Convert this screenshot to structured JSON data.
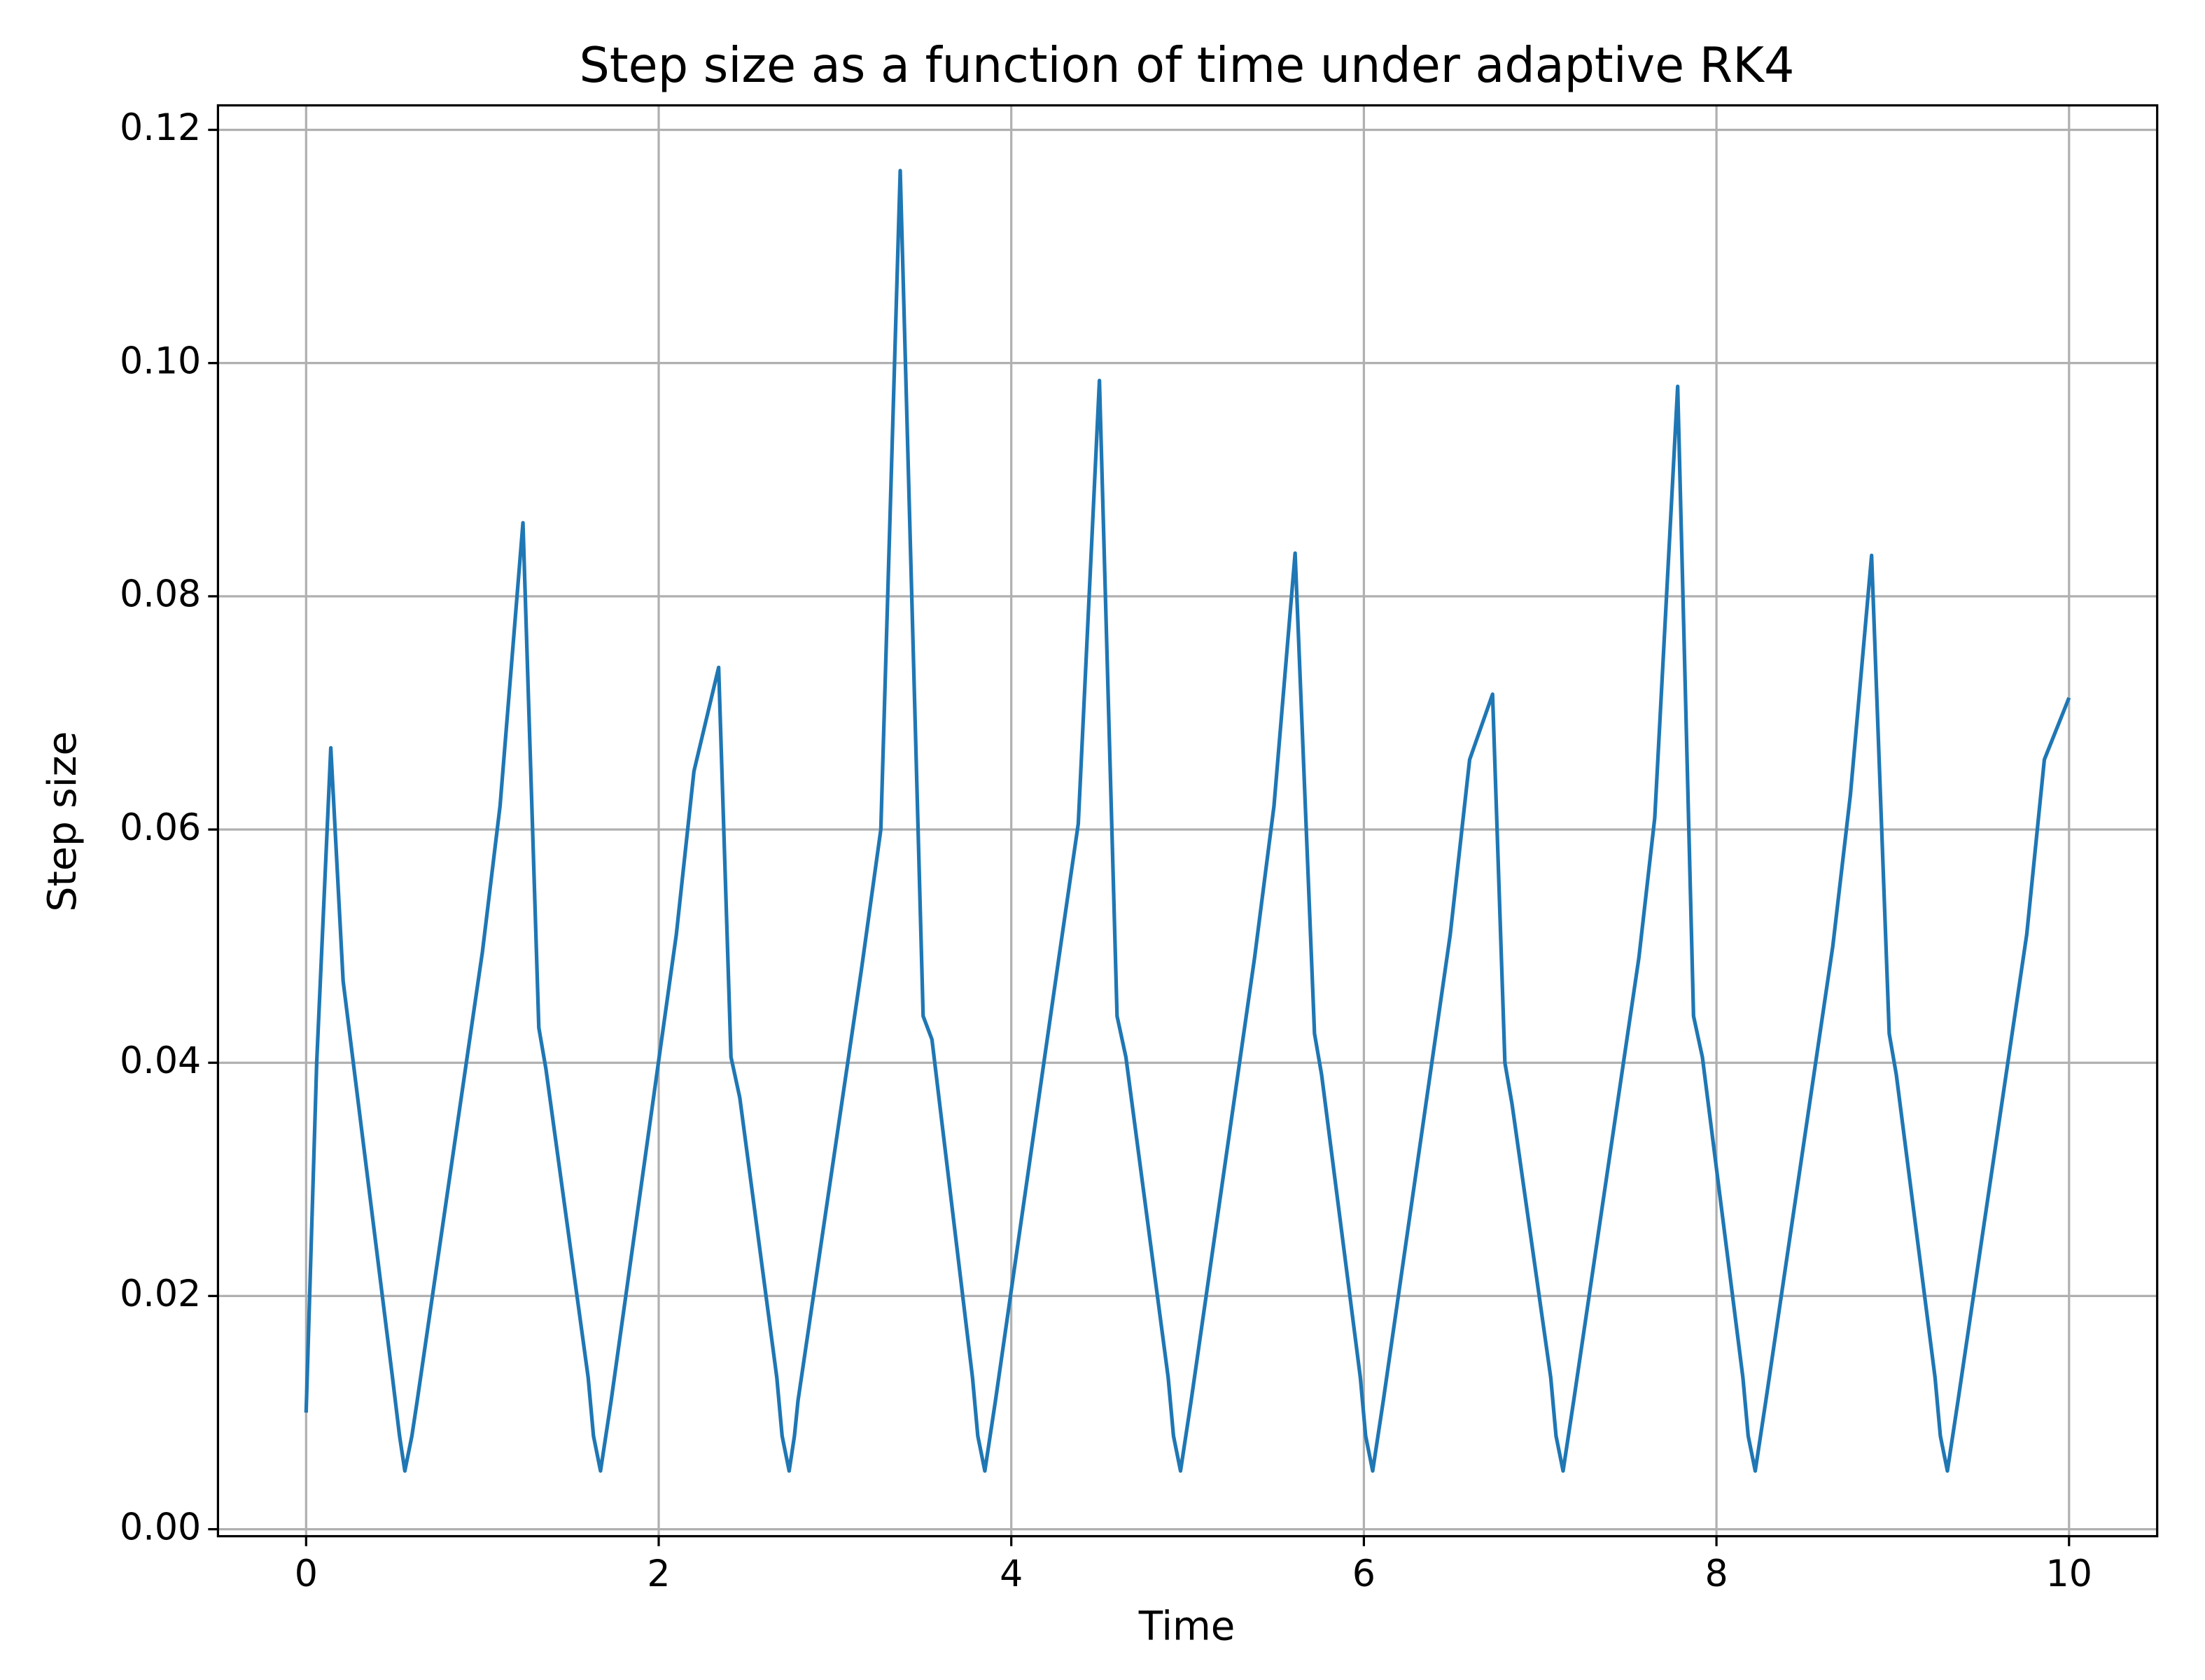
{
  "chart_data": {
    "type": "line",
    "title": "Step size as a function of time under adaptive RK4",
    "x_label": "Time",
    "y_label": "Step size",
    "x": [
      0,
      0.06,
      0.14,
      0.21,
      0.49,
      0.53,
      0.56,
      0.6,
      0.63,
      1.0,
      1.1,
      1.23,
      1.32,
      1.36,
      1.6,
      1.63,
      1.67,
      1.7,
      1.73,
      2.1,
      2.2,
      2.34,
      2.41,
      2.46,
      2.67,
      2.7,
      2.74,
      2.77,
      2.79,
      3.15,
      3.26,
      3.37,
      3.5,
      3.55,
      3.78,
      3.81,
      3.85,
      3.88,
      3.91,
      4.27,
      4.38,
      4.5,
      4.6,
      4.65,
      4.89,
      4.92,
      4.96,
      4.99,
      5.02,
      5.38,
      5.49,
      5.61,
      5.72,
      5.76,
      5.98,
      6.01,
      6.05,
      6.08,
      6.11,
      6.49,
      6.6,
      6.73,
      6.8,
      6.84,
      7.06,
      7.09,
      7.13,
      7.16,
      7.19,
      7.56,
      7.65,
      7.78,
      7.87,
      7.92,
      8.15,
      8.18,
      8.22,
      8.25,
      8.28,
      8.66,
      8.76,
      8.88,
      8.98,
      9.02,
      9.24,
      9.27,
      9.31,
      9.34,
      9.37,
      9.76,
      9.86,
      10.0
    ],
    "values": [
      0.01,
      0.04,
      0.067,
      0.047,
      0.013,
      0.008,
      0.005,
      0.008,
      0.011,
      0.0495,
      0.062,
      0.0863,
      0.043,
      0.0395,
      0.013,
      0.008,
      0.005,
      0.008,
      0.011,
      0.051,
      0.065,
      0.0739,
      0.0405,
      0.037,
      0.013,
      0.008,
      0.005,
      0.008,
      0.011,
      0.048,
      0.06,
      0.1165,
      0.044,
      0.042,
      0.013,
      0.008,
      0.005,
      0.008,
      0.011,
      0.049,
      0.0605,
      0.0985,
      0.044,
      0.0405,
      0.013,
      0.008,
      0.005,
      0.008,
      0.011,
      0.049,
      0.062,
      0.0837,
      0.0425,
      0.039,
      0.013,
      0.008,
      0.005,
      0.008,
      0.011,
      0.051,
      0.066,
      0.0716,
      0.04,
      0.0365,
      0.013,
      0.008,
      0.005,
      0.008,
      0.011,
      0.049,
      0.061,
      0.098,
      0.044,
      0.0405,
      0.013,
      0.008,
      0.005,
      0.008,
      0.011,
      0.05,
      0.063,
      0.0835,
      0.0425,
      0.039,
      0.013,
      0.008,
      0.005,
      0.008,
      0.011,
      0.051,
      0.066,
      0.0713
    ],
    "color": "#1f77b4",
    "xlim": [
      -0.5,
      10.5
    ],
    "ylim": [
      -0.0006,
      0.1221
    ],
    "xticks": [
      0,
      2,
      4,
      6,
      8,
      10
    ],
    "yticks": [
      {
        "value": 0,
        "label": "0.00"
      },
      {
        "value": 0.02,
        "label": "0.02"
      },
      {
        "value": 0.04,
        "label": "0.04"
      },
      {
        "value": 0.06,
        "label": "0.06"
      },
      {
        "value": 0.08,
        "label": "0.08"
      },
      {
        "value": 0.1,
        "label": "0.10"
      },
      {
        "value": 0.12,
        "label": "0.12"
      }
    ],
    "grid": true
  }
}
